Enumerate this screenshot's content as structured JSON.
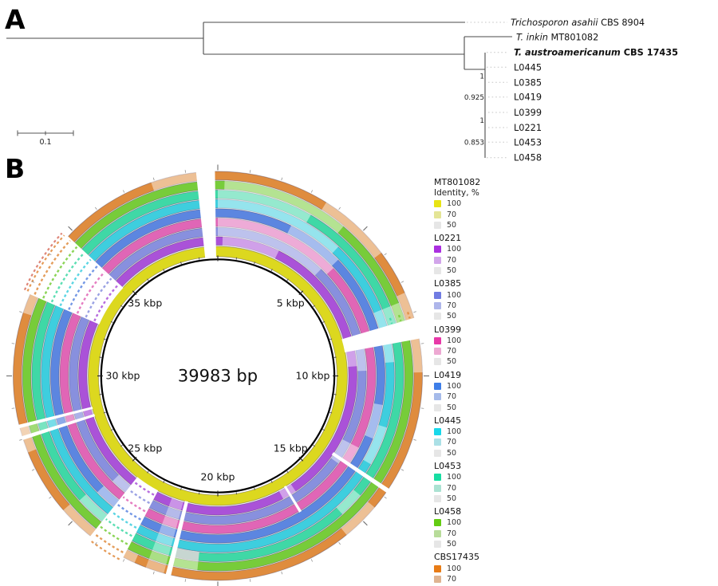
{
  "panel_a": {
    "label": "A",
    "scale_bar_label": "0.1",
    "taxa": [
      {
        "italic": "Trichosporon asahii",
        "rest": " CBS 8904",
        "bold": false
      },
      {
        "italic": "T. inkin",
        "rest": " MT801082",
        "bold": false
      },
      {
        "italic": "T. austroamericanum",
        "rest": " CBS 17435",
        "bold": true
      },
      {
        "italic": "",
        "rest": "L0445",
        "bold": false
      },
      {
        "italic": "",
        "rest": "L0385",
        "bold": false
      },
      {
        "italic": "",
        "rest": "L0419",
        "bold": false
      },
      {
        "italic": "",
        "rest": "L0399",
        "bold": false
      },
      {
        "italic": "",
        "rest": "L0221",
        "bold": false
      },
      {
        "italic": "",
        "rest": "L0453",
        "bold": false
      },
      {
        "italic": "",
        "rest": "L0458",
        "bold": false
      }
    ],
    "supports": [
      "1",
      "0.925",
      "1",
      "0.853"
    ]
  },
  "panel_b": {
    "label": "B",
    "center_label": "39983 bp",
    "total_bp": 39983,
    "position_labels": [
      "5 kbp",
      "10 kbp",
      "15 kbp",
      "20 kbp",
      "25 kbp",
      "30 kbp",
      "35 kbp"
    ],
    "rings": [
      {
        "name": "MT801082",
        "color": "#dcd81f"
      },
      {
        "name": "L0221",
        "color": "#aa52d8"
      },
      {
        "name": "L0385",
        "color": "#8890de"
      },
      {
        "name": "L0399",
        "color": "#e066b6"
      },
      {
        "name": "L0419",
        "color": "#5c86e0"
      },
      {
        "name": "L0445",
        "color": "#3ecede"
      },
      {
        "name": "L0453",
        "color": "#3fd8a6"
      },
      {
        "name": "L0458",
        "color": "#77cc3a"
      },
      {
        "name": "CBS17435",
        "color": "#df8c3e"
      }
    ],
    "gaps": [
      {
        "a1": 353.9,
        "a2": 359.2,
        "from": 0,
        "to": 8
      },
      {
        "a1": 73.5,
        "a2": 79.5,
        "from": 1,
        "to": 8
      },
      {
        "a1": 293.5,
        "a2": 313.0,
        "from": 1,
        "to": 8
      },
      {
        "a1": 207.5,
        "a2": 218.5,
        "from": 1,
        "to": 8
      },
      {
        "a1": 193.2,
        "a2": 194.7,
        "from": 1,
        "to": 8
      },
      {
        "a1": 251.8,
        "a2": 252.9,
        "from": 1,
        "to": 8
      },
      {
        "a1": 255.2,
        "a2": 256.2,
        "from": 1,
        "to": 8
      },
      {
        "a1": 123.4,
        "a2": 124.7,
        "from": 2,
        "to": 8
      },
      {
        "a1": 148.2,
        "a2": 149.2,
        "from": 1,
        "to": 3
      }
    ],
    "light_segments": [
      {
        "ring": 1,
        "a1": 2,
        "a2": 26
      },
      {
        "ring": 1,
        "a1": 79.5,
        "a2": 86
      },
      {
        "ring": 1,
        "a1": 146,
        "a2": 152
      },
      {
        "ring": 2,
        "a1": 0,
        "a2": 44
      },
      {
        "ring": 2,
        "a1": 79.5,
        "a2": 88
      },
      {
        "ring": 2,
        "a1": 117,
        "a2": 126
      },
      {
        "ring": 2,
        "a1": 218.5,
        "a2": 225
      },
      {
        "ring": 3,
        "a1": 0,
        "a2": 47
      },
      {
        "ring": 3,
        "a1": 117,
        "a2": 124.5
      },
      {
        "ring": 4,
        "a1": 26,
        "a2": 46
      },
      {
        "ring": 4,
        "a1": 100,
        "a2": 112
      },
      {
        "ring": 4,
        "a1": 218.5,
        "a2": 226
      },
      {
        "ring": 5,
        "a1": 0,
        "a2": 43
      },
      {
        "ring": 5,
        "a1": 68,
        "a2": 73.5
      },
      {
        "ring": 5,
        "a1": 79.5,
        "a2": 85.5
      },
      {
        "ring": 5,
        "a1": 107,
        "a2": 120
      },
      {
        "ring": 6,
        "a1": 0,
        "a2": 30
      },
      {
        "ring": 6,
        "a1": 68,
        "a2": 73.5
      },
      {
        "ring": 6,
        "a1": 130,
        "a2": 138
      },
      {
        "ring": 6,
        "a1": 218.5,
        "a2": 228
      },
      {
        "ring": 7,
        "a1": 2,
        "a2": 40
      },
      {
        "ring": 7,
        "a1": 68,
        "a2": 73.5
      },
      {
        "ring": 7,
        "a1": 186,
        "a2": 193.2
      },
      {
        "ring": 8,
        "a1": 32,
        "a2": 53
      },
      {
        "ring": 8,
        "a1": 66,
        "a2": 73.5
      },
      {
        "ring": 8,
        "a1": 79.5,
        "a2": 89
      },
      {
        "ring": 8,
        "a1": 130,
        "a2": 141
      },
      {
        "ring": 8,
        "a1": 204,
        "a2": 207.5
      },
      {
        "ring": 8,
        "a1": 218.5,
        "a2": 229
      },
      {
        "ring": 8,
        "a1": 248,
        "a2": 256
      },
      {
        "ring": 8,
        "a1": 288,
        "a2": 293.5
      },
      {
        "ring": 8,
        "a1": 341,
        "a2": 353.9
      }
    ],
    "gray_segments": [
      {
        "ring": 6,
        "a1": 186,
        "a2": 193.2
      }
    ],
    "veils": [
      {
        "a1": 195.3,
        "a2": 200.6,
        "op": 0.38
      },
      {
        "a1": 252.9,
        "a2": 255.2,
        "op": 0.3
      }
    ],
    "fragment_groups": [
      {
        "a1": 294,
        "a2": 312.5,
        "rings": [
          1,
          2,
          3,
          4,
          5,
          6,
          7,
          8
        ],
        "outer": [
          {
            "r": 261,
            "color": "#e0883a"
          },
          {
            "r": 265,
            "color": "#d87060"
          }
        ]
      },
      {
        "a1": 208.2,
        "a2": 218,
        "rings": [
          1,
          2,
          3,
          4,
          5,
          6,
          7,
          8
        ],
        "outer": [
          {
            "r": 261,
            "color": "#e0883a"
          }
        ]
      },
      {
        "a1": 71.4,
        "a2": 73.3,
        "rings": [
          6,
          7,
          8
        ],
        "outer": []
      }
    ]
  },
  "legend": {
    "identity_label": "Identity, %",
    "levels": [
      "100",
      "70",
      "50"
    ],
    "entries": [
      {
        "name": "MT801082",
        "c100": "#e8e414",
        "c70": "#e4e596",
        "c50": "#e6e6e6"
      },
      {
        "name": "L0221",
        "c100": "#ab2fe0",
        "c70": "#d2a5ea",
        "c50": "#e6e6e6"
      },
      {
        "name": "L0385",
        "c100": "#707ce2",
        "c70": "#aeb6ea",
        "c50": "#e6e6e6"
      },
      {
        "name": "L0399",
        "c100": "#e838a8",
        "c70": "#eda8d2",
        "c50": "#e6e6e6"
      },
      {
        "name": "L0419",
        "c100": "#3e7ee8",
        "c70": "#a6bbea",
        "c50": "#e6e6e6"
      },
      {
        "name": "L0445",
        "c100": "#17d8ea",
        "c70": "#abe0e6",
        "c50": "#e6e6e6"
      },
      {
        "name": "L0453",
        "c100": "#17dda2",
        "c70": "#abe2d2",
        "c50": "#e6e6e6"
      },
      {
        "name": "L0458",
        "c100": "#63cc12",
        "c70": "#b8dc9a",
        "c50": "#e6e6e6"
      },
      {
        "name": "CBS17435",
        "c100": "#e87c16",
        "c70": "#dfb491",
        "c50": "#e6e6e6"
      }
    ]
  }
}
